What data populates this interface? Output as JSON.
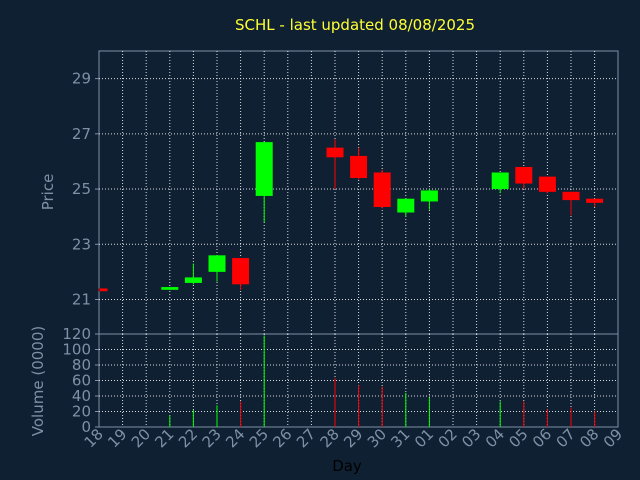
{
  "colors": {
    "background": "#0f2033",
    "axis": "#7f8fa6",
    "grid": "#ffffff",
    "up": "#00ff00",
    "down": "#ff0000",
    "title": "#ffff33"
  },
  "chart_data": {
    "type": "candlestick",
    "title": "SCHL - last updated 08/08/2025",
    "xlabel": "Day",
    "x_ticks": [
      "18",
      "19",
      "20",
      "21",
      "22",
      "23",
      "24",
      "25",
      "26",
      "27",
      "28",
      "29",
      "30",
      "31",
      "01",
      "02",
      "03",
      "04",
      "05",
      "06",
      "07",
      "08",
      "09"
    ],
    "price_axis": {
      "label": "Price",
      "ticks": [
        "21",
        "23",
        "25",
        "27",
        "29"
      ],
      "ylim": [
        19.75,
        30.0
      ]
    },
    "volume_axis": {
      "label": "Volume (0000)",
      "ticks": [
        "0",
        "20",
        "40",
        "60",
        "80",
        "100",
        "120"
      ],
      "ylim": [
        0,
        120
      ]
    },
    "grid": true,
    "candles": [
      {
        "day": "18",
        "open": 21.4,
        "high": 21.4,
        "low": 21.3,
        "close": 21.3,
        "volume": 0
      },
      {
        "day": "21",
        "open": 21.35,
        "high": 21.45,
        "low": 21.35,
        "close": 21.45,
        "volume": 15
      },
      {
        "day": "22",
        "open": 21.6,
        "high": 22.3,
        "low": 21.55,
        "close": 21.8,
        "volume": 22
      },
      {
        "day": "23",
        "open": 22.0,
        "high": 22.6,
        "low": 21.65,
        "close": 22.6,
        "volume": 28
      },
      {
        "day": "24",
        "open": 22.5,
        "high": 22.5,
        "low": 21.35,
        "close": 21.55,
        "volume": 33
      },
      {
        "day": "25",
        "open": 24.75,
        "high": 26.7,
        "low": 23.8,
        "close": 26.7,
        "volume": 118
      },
      {
        "day": "28",
        "open": 26.5,
        "high": 26.8,
        "low": 25.0,
        "close": 26.15,
        "volume": 63
      },
      {
        "day": "29",
        "open": 26.2,
        "high": 26.5,
        "low": 25.35,
        "close": 25.4,
        "volume": 54
      },
      {
        "day": "30",
        "open": 25.6,
        "high": 25.7,
        "low": 24.3,
        "close": 24.35,
        "volume": 52
      },
      {
        "day": "31",
        "open": 24.15,
        "high": 24.65,
        "low": 24.0,
        "close": 24.65,
        "volume": 44
      },
      {
        "day": "01",
        "open": 24.55,
        "high": 25.0,
        "low": 24.25,
        "close": 24.95,
        "volume": 38
      },
      {
        "day": "04",
        "open": 25.0,
        "high": 25.6,
        "low": 24.85,
        "close": 25.6,
        "volume": 33
      },
      {
        "day": "05",
        "open": 25.8,
        "high": 25.8,
        "low": 25.0,
        "close": 25.2,
        "volume": 33
      },
      {
        "day": "06",
        "open": 25.45,
        "high": 25.45,
        "low": 24.85,
        "close": 24.9,
        "volume": 23
      },
      {
        "day": "07",
        "open": 24.9,
        "high": 24.9,
        "low": 24.05,
        "close": 24.6,
        "volume": 25
      },
      {
        "day": "08",
        "open": 24.65,
        "high": 24.65,
        "low": 24.35,
        "close": 24.5,
        "volume": 20
      }
    ]
  }
}
